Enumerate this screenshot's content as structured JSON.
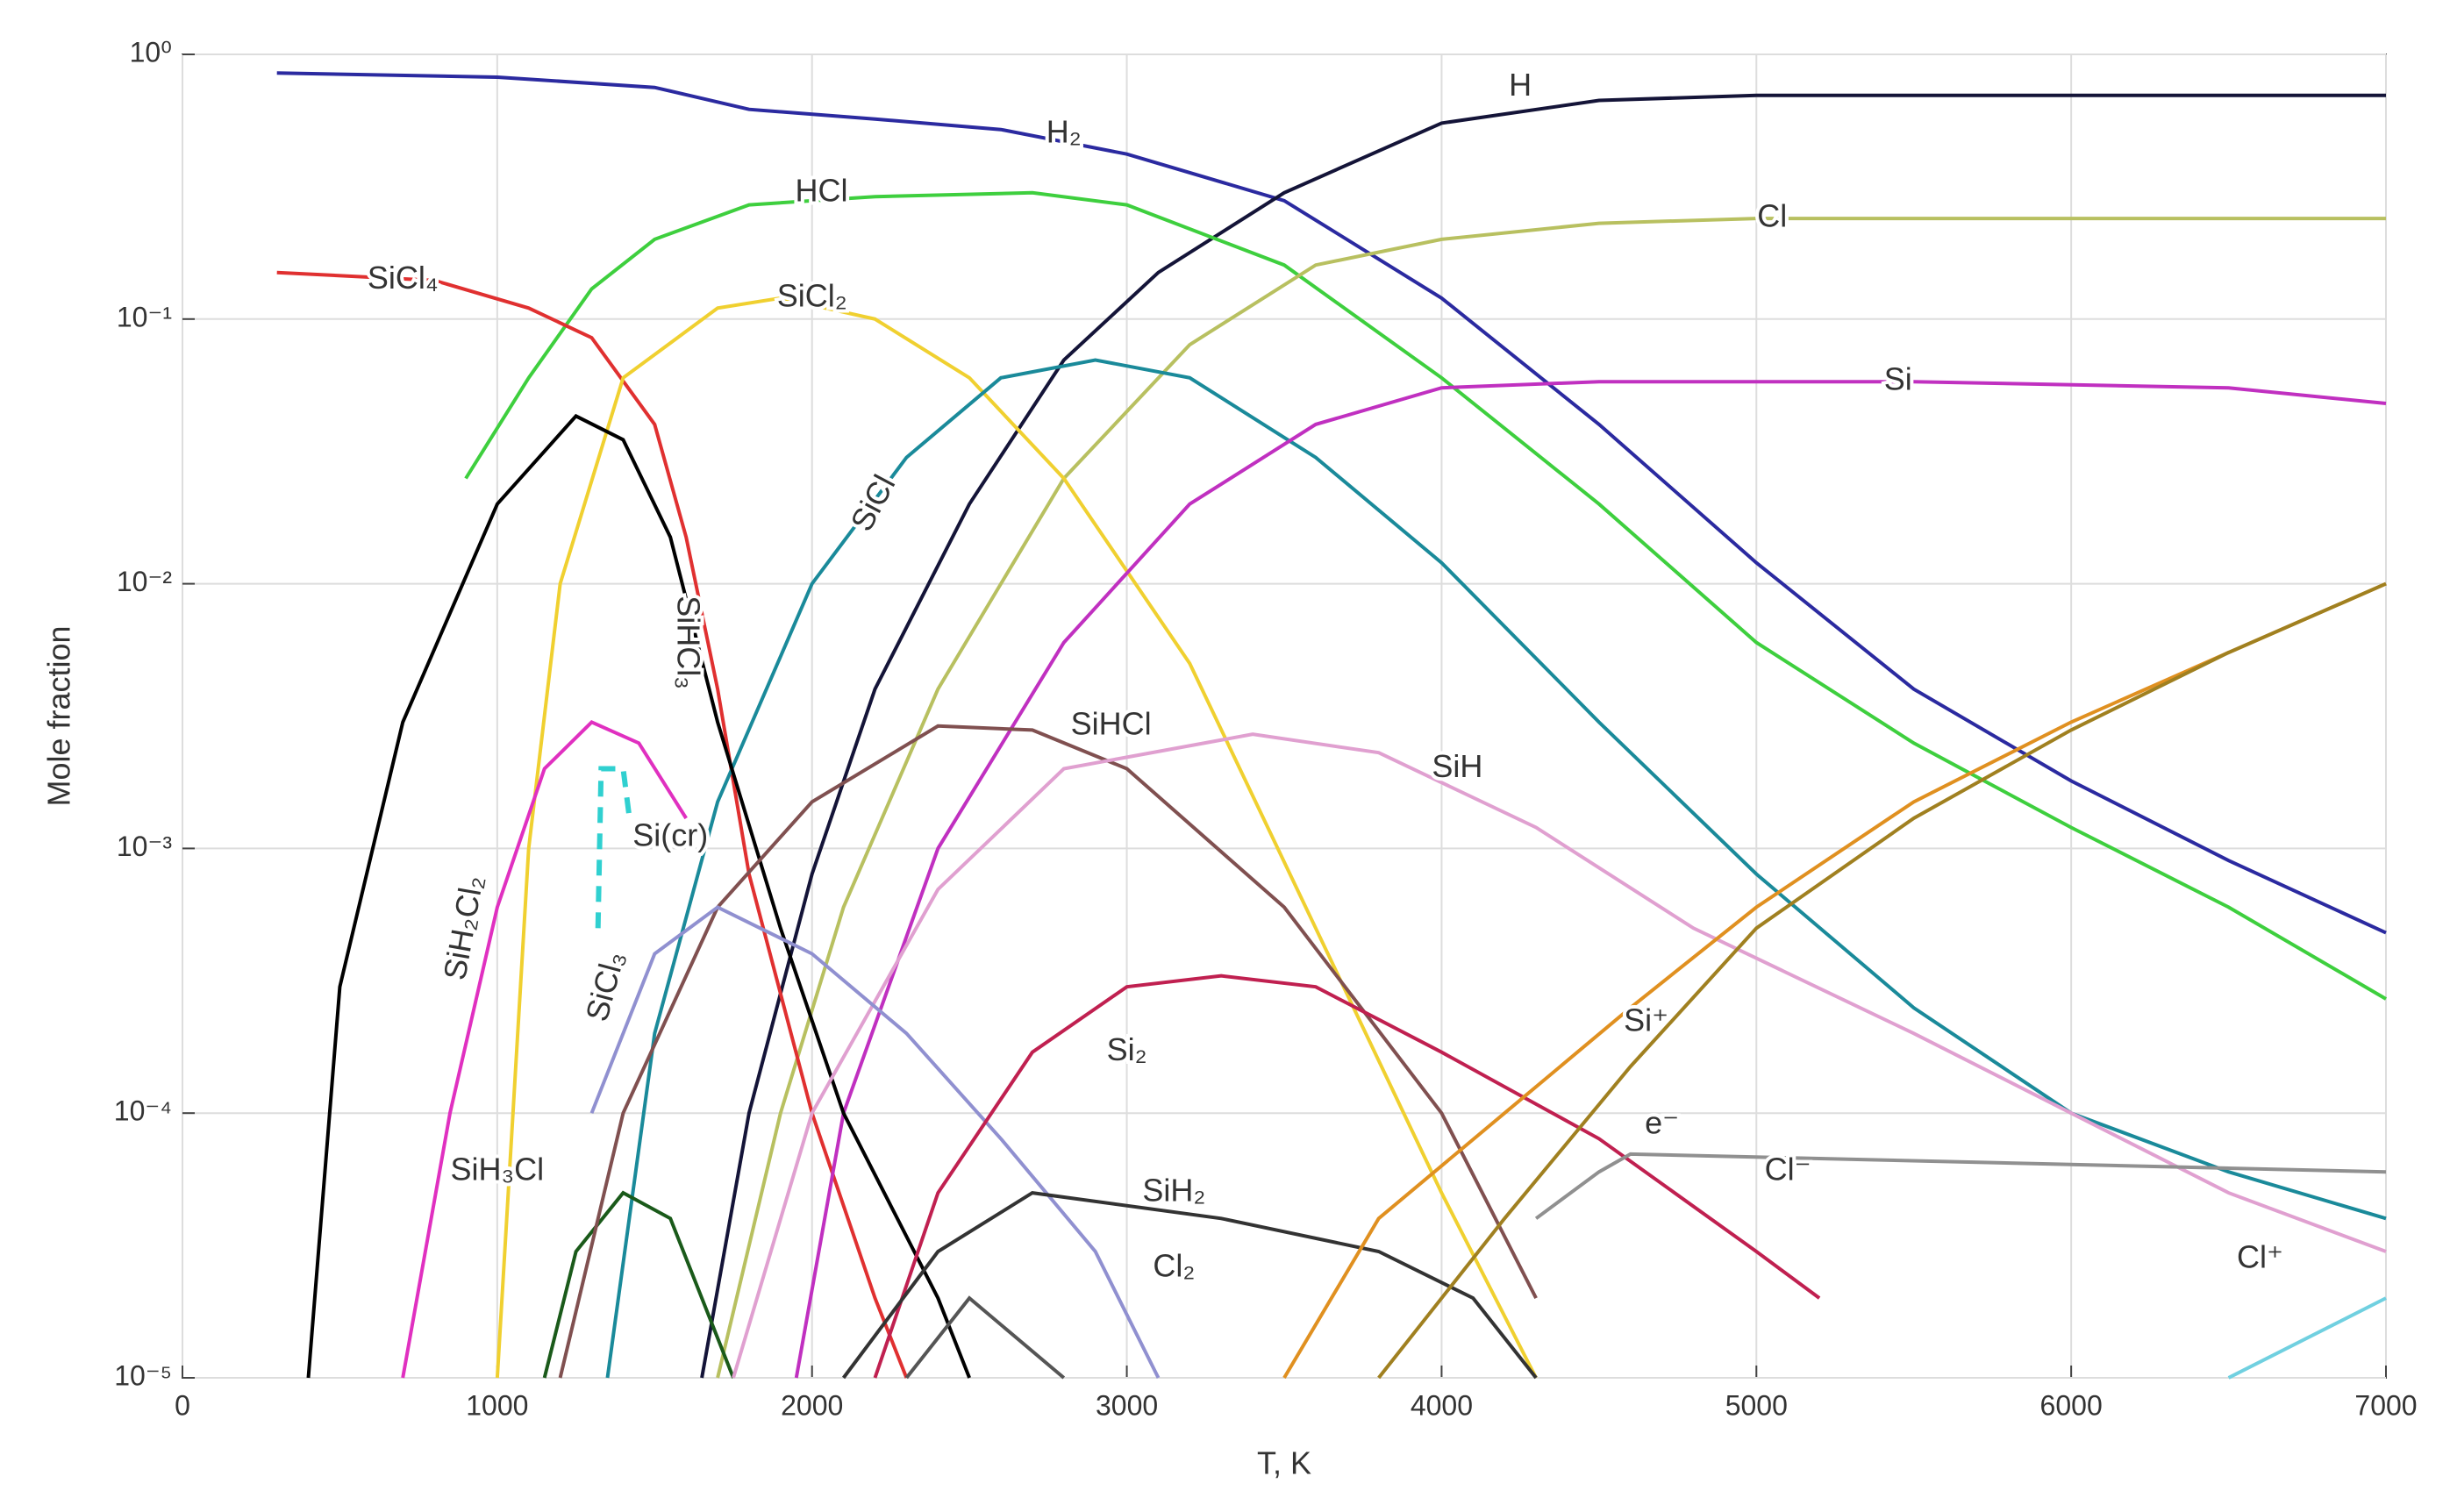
{
  "chart_data": {
    "type": "line",
    "log_y": true,
    "grid": true,
    "xlabel": "T, K",
    "ylabel": "Mole fraction",
    "xlim": [
      0,
      7000
    ],
    "xticks": [
      0,
      1000,
      2000,
      3000,
      4000,
      5000,
      6000,
      7000
    ],
    "ylim": [
      1e-05,
      1
    ],
    "yticks": [
      {
        "value": 1e-05,
        "label": "10⁻⁵"
      },
      {
        "value": 0.0001,
        "label": "10⁻⁴"
      },
      {
        "value": 0.001,
        "label": "10⁻³"
      },
      {
        "value": 0.01,
        "label": "10⁻²"
      },
      {
        "value": 0.1,
        "label": "10⁻¹"
      },
      {
        "value": 1,
        "label": "10⁰"
      }
    ],
    "series": [
      {
        "name": "H₂",
        "color": "#2b2aa0",
        "x": [
          300,
          1000,
          1500,
          1800,
          2200,
          2600,
          3000,
          3500,
          4000,
          4500,
          5000,
          5500,
          6000,
          6500,
          7000
        ],
        "values": [
          0.85,
          0.82,
          0.75,
          0.62,
          0.57,
          0.52,
          0.42,
          0.28,
          0.12,
          0.04,
          0.012,
          0.004,
          0.0018,
          0.0009,
          0.00048
        ]
      },
      {
        "name": "H",
        "color": "#141438",
        "x": [
          1650,
          1800,
          2000,
          2200,
          2500,
          2800,
          3100,
          3500,
          4000,
          4500,
          5000,
          7000
        ],
        "values": [
          1e-05,
          0.0001,
          0.0008,
          0.004,
          0.02,
          0.07,
          0.15,
          0.3,
          0.55,
          0.67,
          0.7,
          0.7
        ]
      },
      {
        "name": "HCl",
        "color": "#3ecf3e",
        "x": [
          900,
          1100,
          1300,
          1500,
          1800,
          2200,
          2700,
          3000,
          3500,
          4000,
          4500,
          5000,
          5500,
          6000,
          6500,
          7000
        ],
        "values": [
          0.025,
          0.06,
          0.13,
          0.2,
          0.27,
          0.29,
          0.3,
          0.27,
          0.16,
          0.06,
          0.02,
          0.006,
          0.0025,
          0.0012,
          0.0006,
          0.00027
        ]
      },
      {
        "name": "Cl",
        "color": "#b8c060",
        "x": [
          1700,
          1900,
          2100,
          2400,
          2800,
          3200,
          3600,
          4000,
          4500,
          5000,
          7000
        ],
        "values": [
          1e-05,
          0.0001,
          0.0006,
          0.004,
          0.025,
          0.08,
          0.16,
          0.2,
          0.23,
          0.24,
          0.24
        ]
      },
      {
        "name": "SiCl₄",
        "color": "#e03030",
        "x": [
          300,
          800,
          1100,
          1300,
          1500,
          1600,
          1700,
          1800,
          2000,
          2200,
          2300
        ],
        "values": [
          0.15,
          0.14,
          0.11,
          0.085,
          0.04,
          0.015,
          0.004,
          0.0008,
          0.0001,
          2e-05,
          1e-05
        ]
      },
      {
        "name": "SiCl₂",
        "color": "#f0d030",
        "x": [
          1000,
          1100,
          1200,
          1400,
          1700,
          1900,
          2200,
          2500,
          2800,
          3200,
          3600,
          4000,
          4300
        ],
        "values": [
          1e-05,
          0.001,
          0.01,
          0.06,
          0.11,
          0.12,
          0.1,
          0.06,
          0.025,
          0.005,
          0.0005,
          5e-05,
          1e-05
        ]
      },
      {
        "name": "SiCl",
        "color": "#1a8a9a",
        "x": [
          1350,
          1500,
          1700,
          2000,
          2300,
          2600,
          2900,
          3200,
          3600,
          4000,
          4500,
          5000,
          5500,
          6000,
          6500,
          7000
        ],
        "values": [
          1e-05,
          0.0002,
          0.0015,
          0.01,
          0.03,
          0.06,
          0.07,
          0.06,
          0.03,
          0.012,
          0.003,
          0.0008,
          0.00025,
          0.0001,
          6e-05,
          4e-05
        ]
      },
      {
        "name": "Si",
        "color": "#c030c0",
        "x": [
          1950,
          2100,
          2400,
          2800,
          3200,
          3600,
          4000,
          4500,
          5500,
          6500,
          7000
        ],
        "values": [
          1e-05,
          0.0001,
          0.001,
          0.006,
          0.02,
          0.04,
          0.055,
          0.058,
          0.058,
          0.055,
          0.048
        ]
      },
      {
        "name": "SiHCl₃",
        "color": "#000000",
        "x": [
          400,
          500,
          700,
          1000,
          1250,
          1400,
          1550,
          1700,
          1900,
          2100,
          2400,
          2500
        ],
        "values": [
          1e-05,
          0.0003,
          0.003,
          0.02,
          0.043,
          0.035,
          0.015,
          0.003,
          0.0005,
          0.0001,
          2e-05,
          1e-05
        ]
      },
      {
        "name": "SiH₂Cl₂",
        "color": "#e030c0",
        "x": [
          700,
          850,
          1000,
          1150,
          1300,
          1450,
          1600
        ],
        "values": [
          1e-05,
          0.0001,
          0.0006,
          0.002,
          0.003,
          0.0025,
          0.0013
        ]
      },
      {
        "name": "Si(cr)",
        "color": "#30d0d0",
        "dashed": true,
        "x": [
          1320,
          1330,
          1400,
          1420
        ],
        "values": [
          0.0005,
          0.002,
          0.002,
          0.0013
        ]
      },
      {
        "name": "SiH₃Cl",
        "color": "#1a5a1a",
        "x": [
          1150,
          1250,
          1400,
          1550,
          1650,
          1750
        ],
        "values": [
          1e-05,
          3e-05,
          5e-05,
          4e-05,
          2e-05,
          1e-05
        ]
      },
      {
        "name": "SiHCl",
        "color": "#805050",
        "x": [
          1200,
          1400,
          1700,
          2000,
          2400,
          2700,
          3000,
          3500,
          4000,
          4300
        ],
        "values": [
          1e-05,
          0.0001,
          0.0006,
          0.0015,
          0.0029,
          0.0028,
          0.002,
          0.0006,
          0.0001,
          2e-05
        ]
      },
      {
        "name": "SiH",
        "color": "#e0a0d0",
        "x": [
          1750,
          2000,
          2400,
          2800,
          3400,
          3800,
          4300,
          4800,
          5500,
          6000,
          6500,
          7000
        ],
        "values": [
          1e-05,
          0.0001,
          0.0007,
          0.002,
          0.0027,
          0.0023,
          0.0012,
          0.0005,
          0.0002,
          0.0001,
          5e-05,
          3e-05
        ]
      },
      {
        "name": "SiCl₃",
        "color": "#9090d0",
        "x": [
          1300,
          1500,
          1700,
          2000,
          2300,
          2600,
          2900,
          3100
        ],
        "values": [
          0.0001,
          0.0004,
          0.0006,
          0.0004,
          0.0002,
          8e-05,
          3e-05,
          1e-05
        ]
      },
      {
        "name": "Si₂",
        "color": "#c02050",
        "x": [
          2200,
          2400,
          2700,
          3000,
          3300,
          3600,
          4000,
          4500,
          5000,
          5200
        ],
        "values": [
          1e-05,
          5e-05,
          0.00017,
          0.0003,
          0.00033,
          0.0003,
          0.00017,
          8e-05,
          3e-05,
          2e-05
        ]
      },
      {
        "name": "SiH₂",
        "color": "#333333",
        "x": [
          2100,
          2400,
          2700,
          3300,
          3800,
          4100,
          4300
        ],
        "values": [
          1e-05,
          3e-05,
          5e-05,
          4e-05,
          3e-05,
          2e-05,
          1e-05
        ]
      },
      {
        "name": "Cl₂",
        "color": "#555555",
        "x": [
          2300,
          2500,
          2800
        ],
        "values": [
          1e-05,
          2e-05,
          1e-05
        ]
      },
      {
        "name": "Si⁺",
        "color": "#e09020",
        "x": [
          3500,
          3800,
          4200,
          4600,
          5000,
          5500,
          6000,
          6500,
          7000
        ],
        "values": [
          1e-05,
          4e-05,
          0.0001,
          0.00025,
          0.0006,
          0.0015,
          0.003,
          0.0055,
          0.01
        ]
      },
      {
        "name": "e⁻",
        "color": "#a08020",
        "x": [
          3800,
          4200,
          4600,
          5000,
          5500,
          6000,
          6500,
          7000
        ],
        "values": [
          1e-05,
          4e-05,
          0.00015,
          0.0005,
          0.0013,
          0.0028,
          0.0055,
          0.01
        ]
      },
      {
        "name": "Cl⁻",
        "color": "#909090",
        "x": [
          4300,
          4500,
          4600,
          7000
        ],
        "values": [
          4e-05,
          6e-05,
          7e-05,
          6e-05
        ]
      },
      {
        "name": "Cl⁺",
        "color": "#70d0e0",
        "x": [
          6500,
          7000
        ],
        "values": [
          1e-05,
          2e-05
        ]
      }
    ]
  }
}
